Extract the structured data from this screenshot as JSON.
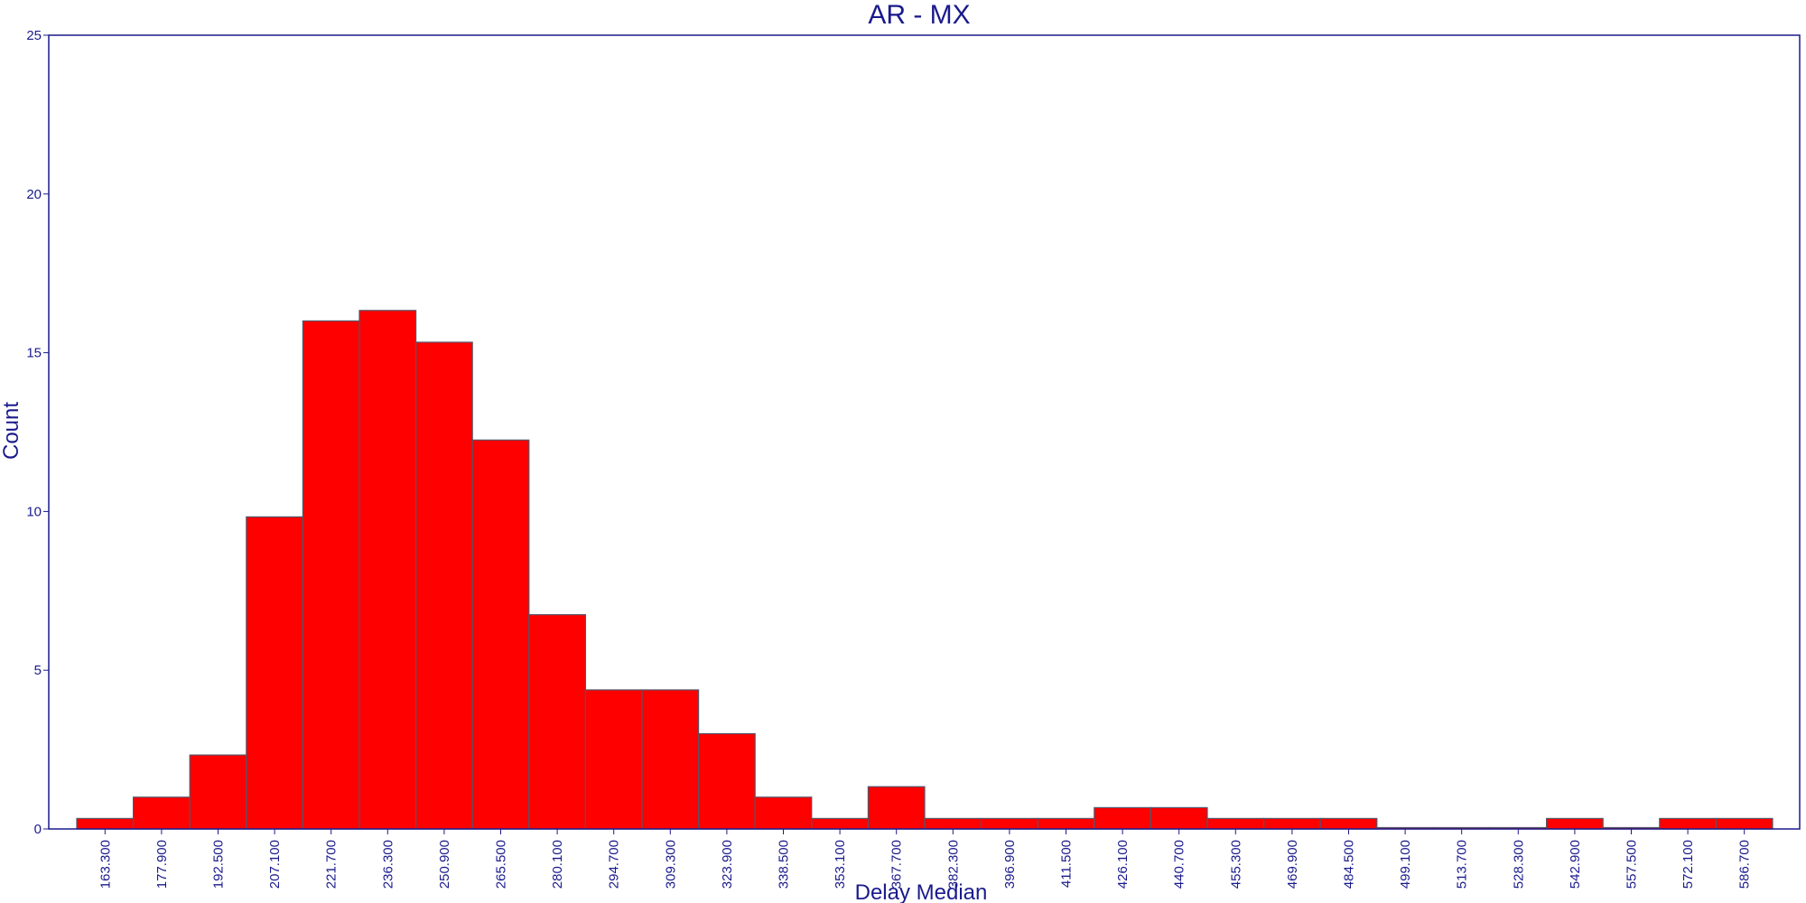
{
  "chart_data": {
    "type": "bar",
    "title": "AR - MX",
    "xlabel": "Delay Median",
    "ylabel": "Count",
    "ylim": [
      0,
      25
    ],
    "yticks": [
      "0",
      "5",
      "10",
      "15",
      "20",
      "25"
    ],
    "categories": [
      "163.300",
      "177.900",
      "192.500",
      "207.100",
      "221.700",
      "236.300",
      "250.900",
      "265.500",
      "280.100",
      "294.700",
      "309.300",
      "323.900",
      "338.500",
      "353.100",
      "367.700",
      "382.300",
      "396.900",
      "411.500",
      "426.100",
      "440.700",
      "455.300",
      "469.900",
      "484.500",
      "499.100",
      "513.700",
      "528.300",
      "542.900",
      "557.500",
      "572.100",
      "586.700"
    ],
    "values": [
      0.33,
      1.0,
      2.33,
      9.83,
      16.0,
      16.33,
      15.33,
      12.25,
      6.75,
      4.38,
      4.38,
      3.0,
      1.0,
      0.33,
      1.33,
      0.33,
      0.33,
      0.33,
      0.67,
      0.67,
      0.33,
      0.33,
      0.33,
      0,
      0,
      0,
      0.33,
      0,
      0.33,
      0.33
    ],
    "grid": false,
    "legend": "none",
    "bar_color": "#ff0000",
    "bar_edge_color": "#555566",
    "axis_color": "#1a1a8c"
  }
}
